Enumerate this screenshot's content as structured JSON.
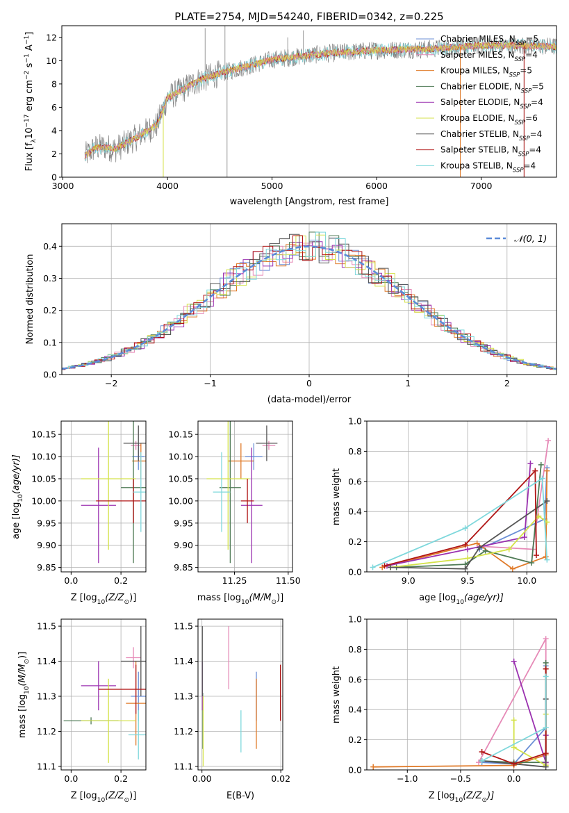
{
  "figure": {
    "title": "PLATE=2754, MJD=54240, FIBERID=0342, z=0.225"
  },
  "colors": {
    "Chabrier MILES": "#6b8fd6",
    "Salpeter MILES": "#e68ab7",
    "Kroupa MILES": "#e07b2a",
    "Chabrier ELODIE": "#4e7a55",
    "Salpeter ELODIE": "#9b32b0",
    "Kroupa ELODIE": "#d4e24a",
    "Chabrier STELIB": "#545454",
    "Salpeter STELIB": "#b01515",
    "Kroupa STELIB": "#7fd8dc",
    "normal_curve": "#5b8bd8"
  },
  "legend": {
    "spectrum": [
      {
        "name": "Chabrier MILES",
        "label": "Chabrier MILES, N",
        "sub": "SSP",
        "suffix": "=5"
      },
      {
        "name": "Salpeter MILES",
        "label": "Salpeter MILES, N",
        "sub": "SSP",
        "suffix": "=4"
      },
      {
        "name": "Kroupa MILES",
        "label": "Kroupa MILES, N",
        "sub": "SSP",
        "suffix": "=5"
      },
      {
        "name": "Chabrier ELODIE",
        "label": "Chabrier ELODIE, N",
        "sub": "SSP",
        "suffix": "=5"
      },
      {
        "name": "Salpeter ELODIE",
        "label": "Salpeter ELODIE, N",
        "sub": "SSP",
        "suffix": "=4"
      },
      {
        "name": "Kroupa ELODIE",
        "label": "Kroupa ELODIE, N",
        "sub": "SSP",
        "suffix": "=6"
      },
      {
        "name": "Chabrier STELIB",
        "label": "Chabrier STELIB, N",
        "sub": "SSP",
        "suffix": "=4"
      },
      {
        "name": "Salpeter STELIB",
        "label": "Salpeter STELIB, N",
        "sub": "SSP",
        "suffix": "=4"
      },
      {
        "name": "Kroupa STELIB",
        "label": "Kroupa STELIB, N",
        "sub": "SSP",
        "suffix": "=4"
      }
    ],
    "residual": "𝒩(0, 1)"
  },
  "chart_data": [
    {
      "type": "line",
      "id": "spectrum",
      "title": "PLATE=2754, MJD=54240, FIBERID=0342, z=0.225",
      "xlabel": "wavelength [Angstrom, rest frame]",
      "ylabel": "Flux [f",
      "ylabel_parts": [
        "Flux [f",
        "λ",
        "10",
        "−17",
        " erg cm",
        "−2",
        " s",
        "−1",
        " A",
        "−1",
        "]"
      ],
      "xlim": [
        2990,
        7720
      ],
      "ylim": [
        0,
        13
      ],
      "xticks": [
        3000,
        4000,
        5000,
        6000,
        7000
      ],
      "yticks": [
        0,
        2,
        4,
        6,
        8,
        10,
        12
      ],
      "grid": false,
      "legend_position": "right",
      "data_range": [
        3210,
        7720
      ],
      "data_shape": {
        "x": [
          3210,
          3300,
          3400,
          3500,
          3700,
          3900,
          4000,
          4100,
          4300,
          4500,
          4800,
          5000,
          5500,
          6000,
          6500,
          7000,
          7400,
          7720
        ],
        "y": [
          1.8,
          2.5,
          2.6,
          2.4,
          3.4,
          4.5,
          6.8,
          7.3,
          8.3,
          8.9,
          9.6,
          10.1,
          10.6,
          10.9,
          11.0,
          11.3,
          11.3,
          11.2
        ]
      },
      "spikes": [
        {
          "x": 4360,
          "ymax": 12.8
        },
        {
          "x": 4550,
          "ymax": 13.0
        },
        {
          "x": 4570,
          "ymax": 0.0
        },
        {
          "x": 5150,
          "ymax": 12.0
        },
        {
          "x": 5300,
          "ymax": 12.6
        },
        {
          "x": 6800,
          "ymax": 0.0
        },
        {
          "x": 7410,
          "ymax": 0.0
        }
      ]
    },
    {
      "type": "bar",
      "id": "residuals",
      "xlabel": "(data-model)/error",
      "ylabel": "Normed distribution",
      "xlim": [
        -2.5,
        2.5
      ],
      "ylim": [
        0,
        0.47
      ],
      "xticks": [
        -2,
        -1,
        0,
        1,
        2
      ],
      "yticks": [
        0.0,
        0.1,
        0.2,
        0.3,
        0.4
      ],
      "grid": true,
      "legend_position": "top-right",
      "bin_width": 0.1,
      "normal": {
        "mu": 0,
        "sigma": 1,
        "name": "𝒩(0, 1)"
      }
    },
    {
      "type": "scatter",
      "id": "age_vs_Z",
      "xlabel": "Z [log",
      "xlabel_parts": [
        "Z [log",
        "10",
        "(Z/Z",
        "⊙",
        ")]"
      ],
      "ylabel_parts": [
        "age  [log",
        "10",
        "(age/yr)]"
      ],
      "xlim": [
        -0.04,
        0.3
      ],
      "ylim": [
        9.84,
        10.18
      ],
      "xticks": [
        0.0,
        0.2
      ],
      "yticks": [
        9.85,
        9.9,
        9.95,
        10.0,
        10.05,
        10.1,
        10.15
      ],
      "grid": true,
      "points": [
        {
          "series": "Chabrier MILES",
          "x": 0.27,
          "xerr": 0.025,
          "y": 10.1,
          "yerr": 0.03
        },
        {
          "series": "Salpeter MILES",
          "x": 0.26,
          "xerr": 0.02,
          "y": 10.125,
          "yerr": 0.01
        },
        {
          "series": "Kroupa MILES",
          "x": 0.28,
          "xerr": 0.035,
          "y": 10.09,
          "yerr": 0.04
        },
        {
          "series": "Chabrier ELODIE",
          "x": 0.25,
          "xerr": 0.05,
          "y": 10.03,
          "yerr": 0.17
        },
        {
          "series": "Salpeter ELODIE",
          "x": 0.11,
          "xerr": 0.07,
          "y": 9.99,
          "yerr": 0.13
        },
        {
          "series": "Kroupa ELODIE",
          "x": 0.15,
          "xerr": 0.11,
          "y": 10.05,
          "yerr": 0.16
        },
        {
          "series": "Chabrier STELIB",
          "x": 0.27,
          "xerr": 0.06,
          "y": 10.13,
          "yerr": 0.04
        },
        {
          "series": "Salpeter STELIB",
          "x": 0.25,
          "xerr": 0.15,
          "y": 10.0,
          "yerr": 0.05
        },
        {
          "series": "Kroupa STELIB",
          "x": 0.28,
          "xerr": 0.03,
          "y": 10.02,
          "yerr": 0.09
        }
      ]
    },
    {
      "type": "scatter",
      "id": "age_vs_mass",
      "xlabel_parts": [
        "mass [log",
        "10",
        "(M/M",
        "⊙",
        ")]"
      ],
      "xlim": [
        11.08,
        11.52
      ],
      "ylim": [
        9.84,
        10.18
      ],
      "xticks": [
        11.25,
        11.5
      ],
      "yticks": [
        9.85,
        9.9,
        9.95,
        10.0,
        10.05,
        10.1,
        10.15
      ],
      "grid": true,
      "points": [
        {
          "series": "Chabrier MILES",
          "x": 11.34,
          "xerr": 0.04,
          "y": 10.1,
          "yerr": 0.03
        },
        {
          "series": "Salpeter MILES",
          "x": 11.41,
          "xerr": 0.03,
          "y": 10.125,
          "yerr": 0.01
        },
        {
          "series": "Kroupa MILES",
          "x": 11.28,
          "xerr": 0.06,
          "y": 10.09,
          "yerr": 0.04
        },
        {
          "series": "Chabrier ELODIE",
          "x": 11.23,
          "xerr": 0.05,
          "y": 10.03,
          "yerr": 0.17
        },
        {
          "series": "Salpeter ELODIE",
          "x": 11.33,
          "xerr": 0.05,
          "y": 9.99,
          "yerr": 0.13
        },
        {
          "series": "Kroupa ELODIE",
          "x": 11.22,
          "xerr": 0.1,
          "y": 10.05,
          "yerr": 0.16
        },
        {
          "series": "Chabrier STELIB",
          "x": 11.4,
          "xerr": 0.05,
          "y": 10.13,
          "yerr": 0.04
        },
        {
          "series": "Salpeter STELIB",
          "x": 11.31,
          "xerr": 0.03,
          "y": 10.0,
          "yerr": 0.05
        },
        {
          "series": "Kroupa STELIB",
          "x": 11.19,
          "xerr": 0.04,
          "y": 10.02,
          "yerr": 0.09
        }
      ]
    },
    {
      "type": "line",
      "id": "weight_vs_age",
      "xlabel_parts": [
        "age  [log",
        "10",
        "(age/yr)]"
      ],
      "ylabel": "mass weight",
      "xlim": [
        8.65,
        10.25
      ],
      "ylim": [
        0,
        1.0
      ],
      "xticks": [
        9.0,
        9.5,
        10.0
      ],
      "yticks": [
        0.0,
        0.2,
        0.4,
        0.6,
        0.8,
        1.0
      ],
      "grid": true,
      "series": [
        {
          "name": "Chabrier MILES",
          "x": [
            9.6,
            10.15,
            10.17
          ],
          "y": [
            0.15,
            0.35,
            0.69
          ]
        },
        {
          "name": "Salpeter MILES",
          "x": [
            9.6,
            10.05,
            10.18
          ],
          "y": [
            0.17,
            0.15,
            0.87
          ]
        },
        {
          "name": "Kroupa MILES",
          "x": [
            8.78,
            9.58,
            9.88,
            10.16,
            10.17
          ],
          "y": [
            0.03,
            0.19,
            0.02,
            0.1,
            0.67
          ]
        },
        {
          "name": "Chabrier ELODIE",
          "x": [
            8.9,
            9.48,
            9.65,
            10.04,
            10.12
          ],
          "y": [
            0.03,
            0.05,
            0.14,
            0.06,
            0.71
          ]
        },
        {
          "name": "Salpeter ELODIE",
          "x": [
            8.82,
            9.5,
            9.98,
            10.03
          ],
          "y": [
            0.04,
            0.15,
            0.23,
            0.72
          ]
        },
        {
          "name": "Kroupa ELODIE",
          "x": [
            8.85,
            9.5,
            9.85,
            10.1,
            10.17
          ],
          "y": [
            0.03,
            0.09,
            0.15,
            0.37,
            0.33
          ]
        },
        {
          "name": "Chabrier STELIB",
          "x": [
            8.85,
            9.48,
            9.6,
            10.17
          ],
          "y": [
            0.03,
            0.02,
            0.16,
            0.47
          ]
        },
        {
          "name": "Salpeter STELIB",
          "x": [
            8.8,
            9.48,
            10.07,
            10.08
          ],
          "y": [
            0.04,
            0.18,
            0.67,
            0.11
          ]
        },
        {
          "name": "Kroupa STELIB",
          "x": [
            8.7,
            9.48,
            10.13,
            10.17
          ],
          "y": [
            0.03,
            0.29,
            0.62,
            0.08
          ]
        }
      ]
    },
    {
      "type": "scatter",
      "id": "mass_vs_Z",
      "xlabel_parts": [
        "Z [log",
        "10",
        "(Z/Z",
        "⊙",
        ")]"
      ],
      "ylabel_parts": [
        "mass [log",
        "10",
        "(M/M",
        "⊙",
        ")]"
      ],
      "xlim": [
        -0.04,
        0.3
      ],
      "ylim": [
        11.09,
        11.52
      ],
      "xticks": [
        0.0,
        0.2
      ],
      "yticks": [
        11.1,
        11.2,
        11.3,
        11.4,
        11.5
      ],
      "grid": true,
      "points": [
        {
          "series": "Chabrier MILES",
          "x": 0.27,
          "xerr": 0.03,
          "y": 11.3,
          "yerr": 0.07
        },
        {
          "series": "Salpeter MILES",
          "x": 0.25,
          "xerr": 0.03,
          "y": 11.41,
          "yerr": 0.03
        },
        {
          "series": "Kroupa MILES",
          "x": 0.26,
          "xerr": 0.04,
          "y": 11.28,
          "yerr": 0.12
        },
        {
          "series": "Chabrier ELODIE",
          "x": 0.08,
          "xerr": 0.11,
          "y": 11.23,
          "yerr": 0.01
        },
        {
          "series": "Salpeter ELODIE",
          "x": 0.11,
          "xerr": 0.07,
          "y": 11.33,
          "yerr": 0.07
        },
        {
          "series": "Kroupa ELODIE",
          "x": 0.15,
          "xerr": 0.11,
          "y": 11.23,
          "yerr": 0.12
        },
        {
          "series": "Chabrier STELIB",
          "x": 0.28,
          "xerr": 0.08,
          "y": 11.4,
          "yerr": 0.1
        },
        {
          "series": "Salpeter STELIB",
          "x": 0.26,
          "xerr": 0.15,
          "y": 11.32,
          "yerr": 0.07
        },
        {
          "series": "Kroupa STELIB",
          "x": 0.27,
          "xerr": 0.04,
          "y": 11.19,
          "yerr": 0.07
        }
      ]
    },
    {
      "type": "scatter",
      "id": "mass_vs_EBV",
      "xlabel": "E(B-V)",
      "xlim": [
        -0.001,
        0.0205
      ],
      "ylim": [
        11.09,
        11.52
      ],
      "xticks": [
        0.0,
        0.02
      ],
      "yticks": [
        11.1,
        11.2,
        11.3,
        11.4,
        11.5
      ],
      "grid": true,
      "points": [
        {
          "series": "Chabrier MILES",
          "x": 0.0138,
          "xerr": 0,
          "y": 11.3,
          "yerr": 0.07
        },
        {
          "series": "Salpeter MILES",
          "x": 0.0068,
          "xerr": 0,
          "y": 11.41,
          "yerr": 0.09
        },
        {
          "series": "Kroupa MILES",
          "x": 0.0138,
          "xerr": 0,
          "y": 11.25,
          "yerr": 0.1
        },
        {
          "series": "Chabrier ELODIE",
          "x": 0.0002,
          "xerr": 0,
          "y": 11.23,
          "yerr": 0.08
        },
        {
          "series": "Salpeter ELODIE",
          "x": 0.0001,
          "xerr": 0,
          "y": 11.33,
          "yerr": 0.07
        },
        {
          "series": "Kroupa ELODIE",
          "x": 0.0003,
          "xerr": 0,
          "y": 11.2,
          "yerr": 0.1
        },
        {
          "series": "Chabrier STELIB",
          "x": 0.0001,
          "xerr": 0,
          "y": 11.4,
          "yerr": 0.1
        },
        {
          "series": "Salpeter STELIB",
          "x": 0.0199,
          "xerr": 0,
          "y": 11.31,
          "yerr": 0.08
        },
        {
          "series": "Kroupa STELIB",
          "x": 0.0099,
          "xerr": 0,
          "y": 11.2,
          "yerr": 0.06
        }
      ]
    },
    {
      "type": "line",
      "id": "weight_vs_Z",
      "xlabel_parts": [
        "Z [log",
        "10",
        "(Z/Z",
        "⊙",
        ")]"
      ],
      "ylabel": "mass weight",
      "xlim": [
        -1.38,
        0.4
      ],
      "ylim": [
        0,
        1.0
      ],
      "xticks": [
        -1.0,
        -0.5,
        0.0
      ],
      "yticks": [
        0.0,
        0.2,
        0.4,
        0.6,
        0.8,
        1.0
      ],
      "grid": true,
      "series": [
        {
          "name": "Chabrier MILES",
          "x": [
            -0.3,
            0.0,
            0.3,
            0.3
          ],
          "y": [
            0.05,
            0.04,
            0.28,
            0.69
          ]
        },
        {
          "name": "Salpeter MILES",
          "x": [
            -0.33,
            0.3,
            0.3
          ],
          "y": [
            0.05,
            0.87,
            0.04
          ]
        },
        {
          "name": "Kroupa MILES",
          "x": [
            -1.32,
            0.0,
            0.3,
            0.3
          ],
          "y": [
            0.02,
            0.03,
            0.1,
            0.67
          ]
        },
        {
          "name": "Chabrier ELODIE",
          "x": [
            -0.3,
            0.0,
            0.3,
            0.3
          ],
          "y": [
            0.06,
            0.05,
            0.05,
            0.71
          ]
        },
        {
          "name": "Salpeter ELODIE",
          "x": [
            0.0,
            0.3,
            0.3
          ],
          "y": [
            0.72,
            0.05,
            0.23
          ]
        },
        {
          "name": "Kroupa ELODIE",
          "x": [
            0.0,
            0.0,
            0.3,
            0.3
          ],
          "y": [
            0.33,
            0.15,
            0.03,
            0.37
          ]
        },
        {
          "name": "Chabrier STELIB",
          "x": [
            -0.3,
            0.0,
            0.3,
            0.3
          ],
          "y": [
            0.06,
            0.04,
            0.02,
            0.47
          ]
        },
        {
          "name": "Salpeter STELIB",
          "x": [
            -0.3,
            0.0,
            0.3,
            0.3
          ],
          "y": [
            0.12,
            0.04,
            0.11,
            0.67
          ]
        },
        {
          "name": "Kroupa STELIB",
          "x": [
            -0.3,
            0.3,
            0.3
          ],
          "y": [
            0.06,
            0.28,
            0.62
          ]
        }
      ]
    }
  ]
}
